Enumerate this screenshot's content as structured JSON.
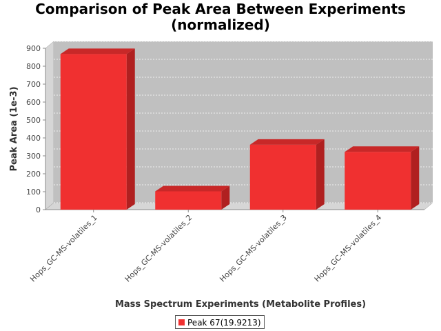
{
  "chart_data": {
    "type": "bar",
    "title_line1": "Comparison of Peak Area Between Experiments",
    "title_line2": "(normalized)",
    "xlabel": "Mass Spectrum Experiments (Metabolite Profiles)",
    "ylabel": "Peak Area (1e-3)",
    "categories": [
      "Hops_GC-MS-volatiles_1",
      "Hops_GC-MS-volatiles_2",
      "Hops_GC-MS-volatiles_3",
      "Hops_GC-MS-volatiles_4"
    ],
    "series": [
      {
        "name": "Peak 67(19.9213)",
        "values": [
          868,
          102,
          362,
          322
        ]
      }
    ],
    "ylim": [
      0,
      900
    ],
    "yticks": [
      "0",
      "100",
      "200",
      "300",
      "400",
      "500",
      "600",
      "700",
      "800",
      "900"
    ],
    "grid": true,
    "legend_position": "bottom",
    "style": "3d-bar",
    "colors": {
      "bar": "#f03030",
      "bar_top": "#c82828",
      "bar_side": "#b02020",
      "plot_bg": "#c0c0c0"
    }
  }
}
